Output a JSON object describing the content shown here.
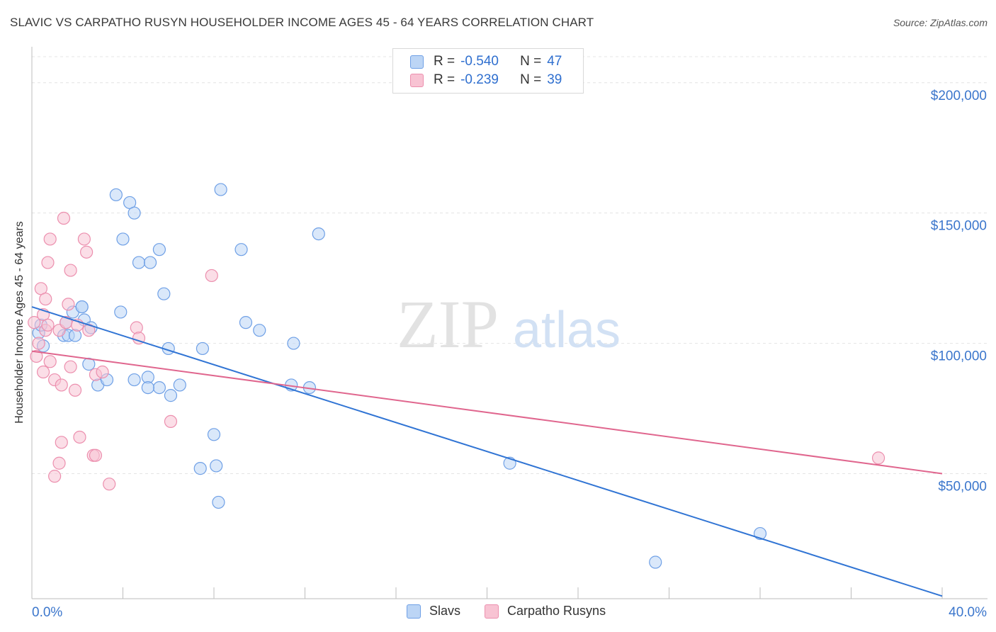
{
  "header": {
    "title": "SLAVIC VS CARPATHO RUSYN HOUSEHOLDER INCOME AGES 45 - 64 YEARS CORRELATION CHART",
    "source": "Source: ZipAtlas.com"
  },
  "watermark": {
    "zip": "ZIP",
    "atlas": "atlas"
  },
  "stats_legend": [
    {
      "r_label": "R =",
      "r_value": "-0.540",
      "n_label": "N =",
      "n_value": "47",
      "color": "#a9c8f2"
    },
    {
      "r_label": "R =",
      "r_value": "-0.239",
      "n_label": "N =",
      "n_value": "39",
      "color": "#f7b6c8"
    }
  ],
  "chart_data": {
    "type": "scatter",
    "title": "SLAVIC VS CARPATHO RUSYN HOUSEHOLDER INCOME AGES 45 - 64 YEARS CORRELATION CHART",
    "xlabel": "",
    "ylabel": "Householder Income Ages 45 - 64 years",
    "xlim": [
      0,
      40
    ],
    "ylim": [
      2000,
      210000
    ],
    "x_tick_labels": [
      "0.0%",
      "40.0%"
    ],
    "y_ticks": [
      50000,
      100000,
      150000,
      200000
    ],
    "y_tick_labels": [
      "$50,000",
      "$100,000",
      "$150,000",
      "$200,000"
    ],
    "grid": true,
    "legend_position": "bottom-center",
    "series": [
      {
        "name": "Slavs",
        "color": "#6fa0e6",
        "fill": "#bcd5f5",
        "trend_color": "#3074d4",
        "trend": {
          "x": [
            0,
            40
          ],
          "y": [
            114000,
            3000
          ]
        },
        "points": [
          [
            0.3,
            104000
          ],
          [
            0.4,
            107000
          ],
          [
            0.5,
            99000
          ],
          [
            1.4,
            103000
          ],
          [
            1.5,
            108000
          ],
          [
            1.6,
            103000
          ],
          [
            1.8,
            112000
          ],
          [
            1.9,
            103000
          ],
          [
            2.3,
            109000
          ],
          [
            2.6,
            106000
          ],
          [
            2.2,
            114000
          ],
          [
            3.9,
            112000
          ],
          [
            2.2,
            114000
          ],
          [
            2.5,
            92000
          ],
          [
            2.9,
            84000
          ],
          [
            3.3,
            86000
          ],
          [
            3.7,
            157000
          ],
          [
            4.0,
            140000
          ],
          [
            4.3,
            154000
          ],
          [
            4.5,
            150000
          ],
          [
            4.7,
            131000
          ],
          [
            5.2,
            131000
          ],
          [
            5.6,
            136000
          ],
          [
            5.6,
            83000
          ],
          [
            4.5,
            86000
          ],
          [
            5.1,
            87000
          ],
          [
            5.1,
            83000
          ],
          [
            6.0,
            98000
          ],
          [
            6.1,
            80000
          ],
          [
            6.5,
            84000
          ],
          [
            5.8,
            119000
          ],
          [
            7.5,
            98000
          ],
          [
            8.0,
            65000
          ],
          [
            7.4,
            52000
          ],
          [
            8.1,
            53000
          ],
          [
            8.2,
            39000
          ],
          [
            8.3,
            159000
          ],
          [
            9.2,
            136000
          ],
          [
            9.4,
            108000
          ],
          [
            10.0,
            105000
          ],
          [
            11.4,
            84000
          ],
          [
            11.5,
            100000
          ],
          [
            12.2,
            83000
          ],
          [
            12.6,
            142000
          ],
          [
            21.0,
            54000
          ],
          [
            27.4,
            16000
          ],
          [
            32.0,
            27000
          ]
        ]
      },
      {
        "name": "Carpatho Rusyns",
        "color": "#ec8fae",
        "fill": "#f8c3d3",
        "trend_color": "#e0668e",
        "trend": {
          "x": [
            0,
            40
          ],
          "y": [
            97000,
            50000
          ]
        },
        "points": [
          [
            0.1,
            108000
          ],
          [
            0.2,
            95000
          ],
          [
            0.3,
            100000
          ],
          [
            0.4,
            121000
          ],
          [
            0.5,
            111000
          ],
          [
            0.6,
            105000
          ],
          [
            0.6,
            117000
          ],
          [
            0.5,
            89000
          ],
          [
            0.7,
            107000
          ],
          [
            0.7,
            131000
          ],
          [
            0.8,
            140000
          ],
          [
            0.8,
            93000
          ],
          [
            1.0,
            86000
          ],
          [
            1.0,
            49000
          ],
          [
            1.2,
            54000
          ],
          [
            1.2,
            105000
          ],
          [
            1.3,
            62000
          ],
          [
            1.3,
            84000
          ],
          [
            1.4,
            148000
          ],
          [
            1.5,
            108000
          ],
          [
            1.6,
            115000
          ],
          [
            1.7,
            128000
          ],
          [
            1.7,
            91000
          ],
          [
            1.9,
            82000
          ],
          [
            2.0,
            107000
          ],
          [
            2.1,
            64000
          ],
          [
            2.3,
            140000
          ],
          [
            2.4,
            135000
          ],
          [
            2.5,
            105000
          ],
          [
            2.7,
            57000
          ],
          [
            2.8,
            57000
          ],
          [
            2.8,
            88000
          ],
          [
            3.1,
            89000
          ],
          [
            3.4,
            46000
          ],
          [
            4.6,
            106000
          ],
          [
            4.7,
            102000
          ],
          [
            6.1,
            70000
          ],
          [
            7.9,
            126000
          ],
          [
            37.2,
            56000
          ]
        ]
      }
    ]
  }
}
